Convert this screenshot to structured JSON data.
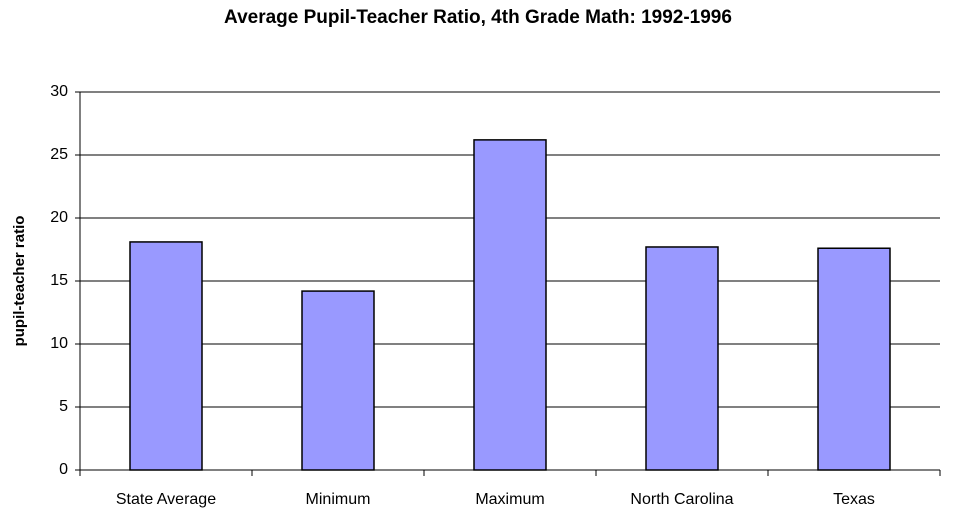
{
  "chart_data": {
    "type": "bar",
    "title": "Average Pupil-Teacher Ratio, 4th Grade Math:  1992-1996",
    "y_label": "pupil-teacher ratio",
    "categories": [
      "State Average",
      "Minimum",
      "Maximum",
      "North Carolina",
      "Texas"
    ],
    "values": [
      18.1,
      14.2,
      26.2,
      17.7,
      17.6
    ],
    "color": "#9999ff",
    "ylim": [
      0,
      30
    ],
    "yticks": [
      0,
      5,
      10,
      15,
      20,
      25,
      30
    ],
    "grid": true
  }
}
